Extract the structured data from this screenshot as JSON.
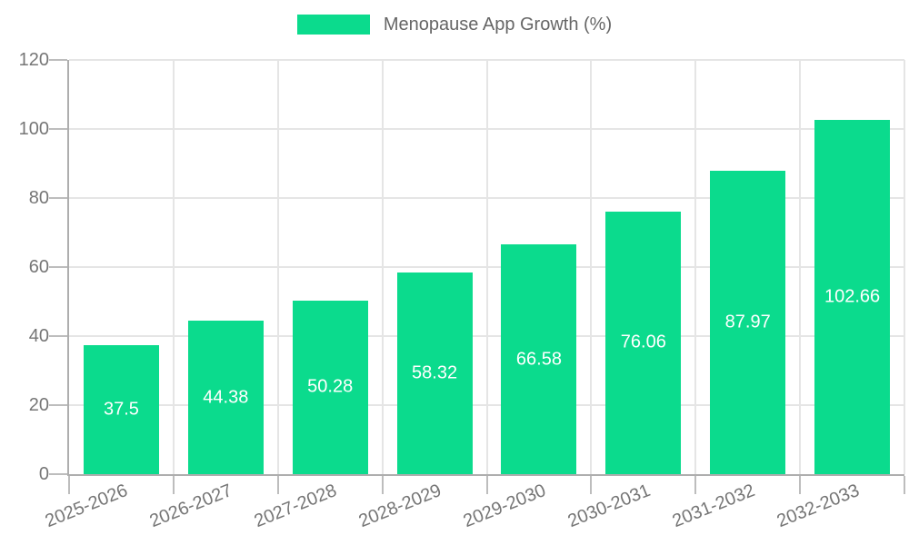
{
  "legend": {
    "label": "Menopause App Growth (%)"
  },
  "colors": {
    "bar": "#0bdb8d",
    "grid": "#e5e5e5",
    "axis": "#aeaeae",
    "tick": "#bdbdbd",
    "axis_label": "#767676",
    "legend_text": "#666666",
    "bar_label": "#ffffff",
    "background": "#ffffff"
  },
  "chart_data": {
    "type": "bar",
    "title": "",
    "legend": "Menopause App Growth (%)",
    "legend_position": "top-center",
    "categories": [
      "2025-2026",
      "2026-2027",
      "2027-2028",
      "2028-2029",
      "2029-2030",
      "2030-2031",
      "2031-2032",
      "2032-2033"
    ],
    "values": [
      37.5,
      44.38,
      50.28,
      58.32,
      66.58,
      76.06,
      87.97,
      102.66
    ],
    "value_labels": [
      "37.5",
      "44.38",
      "50.28",
      "58.32",
      "66.58",
      "76.06",
      "87.97",
      "102.66"
    ],
    "value_label_position": "center-inside",
    "value_label_color": "#ffffff",
    "xlabel": "",
    "ylabel": "",
    "ylim": [
      0,
      120
    ],
    "yticks": [
      0,
      20,
      40,
      60,
      80,
      100,
      120
    ],
    "grid": "both",
    "x_tick_rotation": -22,
    "bar_color": "#0bdb8d"
  }
}
